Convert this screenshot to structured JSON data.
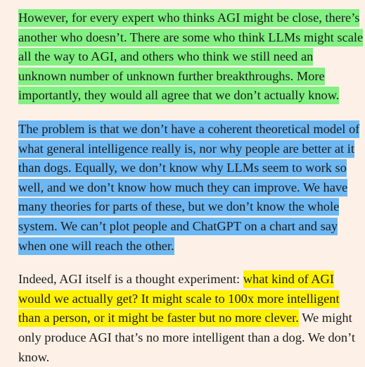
{
  "article": {
    "paragraphs": [
      {
        "highlight": "#82f082",
        "lines": [
          "However, for every expert who thinks AGI might be close, there’s",
          "another who doesn’t. There are some who think LLMs might scale",
          "all the way to AGI, and others who think we still need an",
          "unknown number of unknown further breakthroughs. More",
          "importantly, they would all agree that we don’t actually know."
        ]
      },
      {
        "highlight": "#6db7f2",
        "lines": [
          "The problem is that we don’t have a coherent theoretical model of",
          "what general intelligence really is, nor why people are better at it",
          "than dogs. Equally, we don’t know why LLMs seem to work so",
          "well, and we don’t know how much they can improve. We have",
          "many theories for parts of these, but we don’t know the whole",
          "system. We can’t plot people and ChatGPT on a chart and say",
          "when one will reach the other."
        ]
      },
      {
        "highlight": "#fff200",
        "line1_plain": "Indeed, AGI itself is a thought experiment: ",
        "line1_highlight": "what kind of AGI",
        "line2_highlight": "would we actually get? It might scale to 100x more intelligent",
        "line3_highlight": "than a person, or it might be faster but no more clever.",
        "line3_plain": " We might",
        "line4_plain": "only produce AGI that’s no more intelligent than a dog. We don’t",
        "line5_plain": "know."
      }
    ]
  }
}
